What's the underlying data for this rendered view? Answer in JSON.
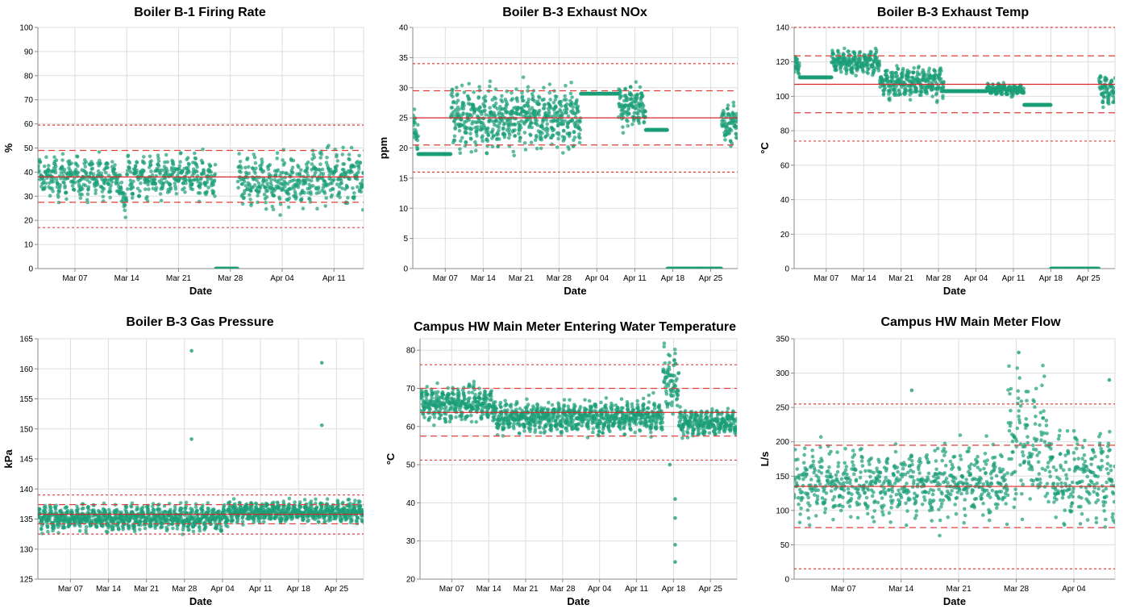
{
  "colors": {
    "point": "#1b9e77",
    "mean_line": "#d62728",
    "sigma_line": "#e0403a",
    "grid": "#dddddd",
    "axis": "#888888"
  },
  "chart_data": [
    {
      "type": "scatter",
      "title": "Boiler B-1 Firing Rate",
      "xlabel": "Date",
      "ylabel": "%",
      "x_tick_labels": [
        "Mar 07",
        "Mar 14",
        "Mar 21",
        "Mar 28",
        "Apr 04",
        "Apr 11"
      ],
      "y_tick_labels": [
        "0",
        "10",
        "20",
        "30",
        "40",
        "50",
        "60",
        "70",
        "80",
        "90",
        "100"
      ],
      "ylim": [
        0,
        100
      ],
      "xlim": [
        "Mar 02",
        "Apr 15"
      ],
      "grid": true,
      "reference_lines": {
        "mean": 38,
        "inner": [
          27.5,
          49
        ],
        "outer": [
          17,
          59.5
        ]
      },
      "series_profile": [
        {
          "start": "Mar 02",
          "end": "Mar 13",
          "center": 38,
          "spread": 5
        },
        {
          "start": "Mar 13",
          "end": "Mar 14",
          "center": 30,
          "spread": 4
        },
        {
          "start": "Mar 14",
          "end": "Mar 26",
          "center": 38,
          "spread": 5
        },
        {
          "start": "Mar 26",
          "end": "Mar 29",
          "center": 0,
          "spread": 0
        },
        {
          "start": "Mar 29",
          "end": "Apr 08",
          "center": 36,
          "spread": 6
        },
        {
          "start": "Apr 08",
          "end": "Apr 15",
          "center": 38,
          "spread": 7
        }
      ]
    },
    {
      "type": "scatter",
      "title": "Boiler B-3 Exhaust NOx",
      "xlabel": "Date",
      "ylabel": "ppm",
      "x_tick_labels": [
        "Mar 07",
        "Mar 14",
        "Mar 21",
        "Mar 28",
        "Apr 04",
        "Apr 11",
        "Apr 18",
        "Apr 25"
      ],
      "y_tick_labels": [
        "0",
        "5",
        "10",
        "15",
        "20",
        "25",
        "30",
        "35",
        "40"
      ],
      "ylim": [
        0,
        40
      ],
      "xlim": [
        "Mar 01",
        "Apr 30"
      ],
      "grid": true,
      "reference_lines": {
        "mean": 25,
        "inner": [
          20.5,
          29.5
        ],
        "outer": [
          16,
          34
        ]
      },
      "series_profile": [
        {
          "start": "Mar 01",
          "end": "Mar 02",
          "center": 23,
          "spread": 2
        },
        {
          "start": "Mar 02",
          "end": "Mar 08",
          "center": 19,
          "spread": 0
        },
        {
          "start": "Mar 08",
          "end": "Apr 01",
          "center": 25,
          "spread": 3
        },
        {
          "start": "Apr 01",
          "end": "Apr 08",
          "center": 29,
          "spread": 0
        },
        {
          "start": "Apr 08",
          "end": "Apr 13",
          "center": 27,
          "spread": 2
        },
        {
          "start": "Apr 13",
          "end": "Apr 17",
          "center": 23,
          "spread": 0
        },
        {
          "start": "Apr 17",
          "end": "Apr 27",
          "center": 0,
          "spread": 0
        },
        {
          "start": "Apr 27",
          "end": "Apr 30",
          "center": 24,
          "spread": 2
        }
      ]
    },
    {
      "type": "scatter",
      "title": "Boiler B-3 Exhaust Temp",
      "xlabel": "Date",
      "ylabel": "°C",
      "x_tick_labels": [
        "Mar 07",
        "Mar 14",
        "Mar 21",
        "Mar 28",
        "Apr 04",
        "Apr 11",
        "Apr 18",
        "Apr 25"
      ],
      "y_tick_labels": [
        "0",
        "20",
        "40",
        "60",
        "80",
        "100",
        "120",
        "140"
      ],
      "ylim": [
        0,
        140
      ],
      "xlim": [
        "Mar 01",
        "Apr 30"
      ],
      "grid": true,
      "reference_lines": {
        "mean": 107,
        "inner": [
          90.5,
          123.5
        ],
        "outer": [
          74,
          140
        ]
      },
      "series_profile": [
        {
          "start": "Mar 01",
          "end": "Mar 02",
          "center": 118,
          "spread": 4
        },
        {
          "start": "Mar 02",
          "end": "Mar 08",
          "center": 111,
          "spread": 0
        },
        {
          "start": "Mar 08",
          "end": "Mar 17",
          "center": 120,
          "spread": 4
        },
        {
          "start": "Mar 17",
          "end": "Mar 29",
          "center": 108,
          "spread": 5
        },
        {
          "start": "Mar 29",
          "end": "Apr 06",
          "center": 103,
          "spread": 0
        },
        {
          "start": "Apr 06",
          "end": "Apr 13",
          "center": 104,
          "spread": 2
        },
        {
          "start": "Apr 13",
          "end": "Apr 18",
          "center": 95,
          "spread": 0
        },
        {
          "start": "Apr 18",
          "end": "Apr 27",
          "center": 0,
          "spread": 0
        },
        {
          "start": "Apr 27",
          "end": "Apr 30",
          "center": 104,
          "spread": 5
        }
      ]
    },
    {
      "type": "scatter",
      "title": "Boiler B-3 Gas Pressure",
      "xlabel": "Date",
      "ylabel": "kPa",
      "x_tick_labels": [
        "Mar 07",
        "Mar 14",
        "Mar 21",
        "Mar 28",
        "Apr 04",
        "Apr 11",
        "Apr 18",
        "Apr 25"
      ],
      "y_tick_labels": [
        "125",
        "130",
        "135",
        "140",
        "145",
        "150",
        "155",
        "160",
        "165"
      ],
      "ylim": [
        125,
        165
      ],
      "xlim": [
        "Mar 01",
        "Apr 30"
      ],
      "grid": true,
      "reference_lines": {
        "mean": 135.8,
        "inner": [
          134.2,
          137.4
        ],
        "outer": [
          132.5,
          139
        ]
      },
      "series_profile": [
        {
          "start": "Mar 01",
          "end": "Apr 05",
          "center": 135.2,
          "spread": 1.2
        },
        {
          "start": "Apr 05",
          "end": "Apr 30",
          "center": 136.2,
          "spread": 1.0
        }
      ],
      "outliers": [
        {
          "x": "Mar 29",
          "y": 163
        },
        {
          "x": "Mar 29",
          "y": 148.3
        },
        {
          "x": "Apr 22",
          "y": 161
        },
        {
          "x": "Apr 22",
          "y": 150.6
        }
      ]
    },
    {
      "type": "scatter",
      "title": "Campus HW Main Meter Entering Water Temperature",
      "xlabel": "Date",
      "ylabel": "°C",
      "x_tick_labels": [
        "Mar 07",
        "Mar 14",
        "Mar 21",
        "Mar 28",
        "Apr 04",
        "Apr 11",
        "Apr 18",
        "Apr 25"
      ],
      "y_tick_labels": [
        "20",
        "30",
        "40",
        "50",
        "60",
        "70",
        "80"
      ],
      "ylim": [
        20,
        83
      ],
      "xlim": [
        "Mar 01",
        "Apr 30"
      ],
      "grid": true,
      "reference_lines": {
        "mean": 63.7,
        "inner": [
          57.5,
          70
        ],
        "outer": [
          51.2,
          76.2
        ]
      },
      "series_profile": [
        {
          "start": "Mar 01",
          "end": "Mar 15",
          "center": 66,
          "spread": 2.5
        },
        {
          "start": "Mar 15",
          "end": "Apr 16",
          "center": 62.5,
          "spread": 2.5
        },
        {
          "start": "Apr 16",
          "end": "Apr 19",
          "center": 72,
          "spread": 5
        },
        {
          "start": "Apr 19",
          "end": "Apr 30",
          "center": 61,
          "spread": 2
        }
      ],
      "outliers": [
        {
          "x": "Apr 18",
          "y": 24.5
        },
        {
          "x": "Apr 18",
          "y": 29
        },
        {
          "x": "Apr 18",
          "y": 36
        },
        {
          "x": "Apr 18",
          "y": 41
        },
        {
          "x": "Apr 17",
          "y": 50
        }
      ]
    },
    {
      "type": "scatter",
      "title": "Campus HW Main Meter Flow",
      "xlabel": "Date",
      "ylabel": "L/s",
      "x_tick_labels": [
        "Mar 07",
        "Mar 14",
        "Mar 21",
        "Mar 28",
        "Apr 04"
      ],
      "y_tick_labels": [
        "0",
        "50",
        "100",
        "150",
        "200",
        "250",
        "300",
        "350"
      ],
      "ylim": [
        0,
        350
      ],
      "xlim": [
        "Mar 01",
        "Apr 09"
      ],
      "grid": true,
      "reference_lines": {
        "mean": 135,
        "inner": [
          75,
          195
        ],
        "outer": [
          15,
          255
        ]
      },
      "series_profile": [
        {
          "start": "Mar 01",
          "end": "Mar 27",
          "center": 140,
          "spread": 30
        },
        {
          "start": "Mar 27",
          "end": "Apr 01",
          "center": 200,
          "spread": 60
        },
        {
          "start": "Apr 01",
          "end": "Apr 09",
          "center": 150,
          "spread": 40
        }
      ],
      "outliers": [
        {
          "x": "Mar 28",
          "y": 330
        },
        {
          "x": "Apr 08",
          "y": 290
        },
        {
          "x": "Mar 15",
          "y": 275
        }
      ]
    }
  ]
}
